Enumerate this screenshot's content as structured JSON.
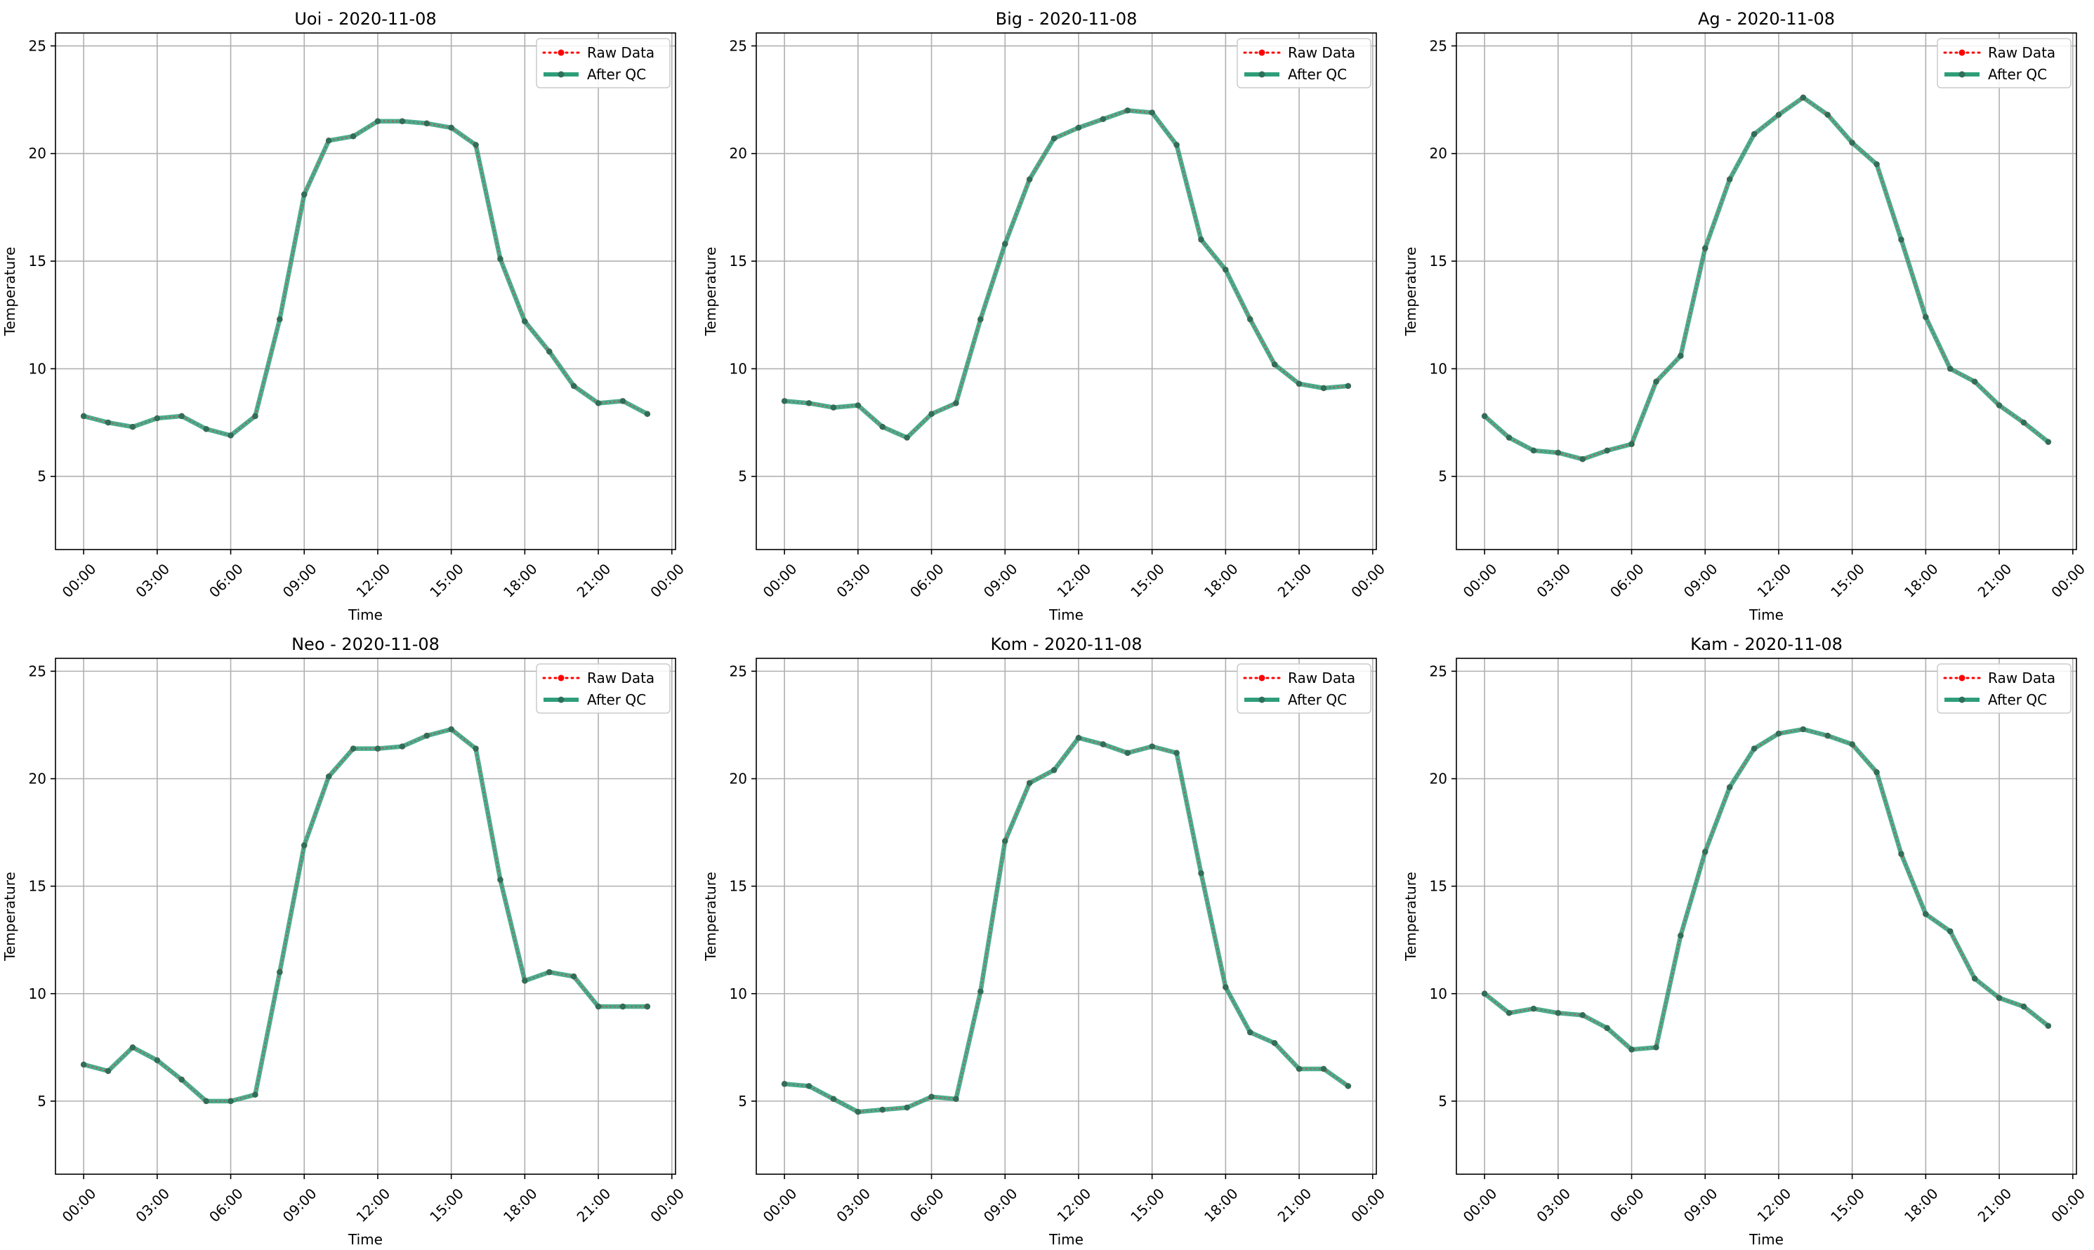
{
  "figure": {
    "legend": {
      "raw_label": "Raw Data",
      "qc_label": "After QC"
    },
    "colors": {
      "raw": "#ff0000",
      "qc": "#2e9e7a",
      "qc_point": "#2f6f5a",
      "grid": "#b0b0b0",
      "axes": "#000000"
    }
  },
  "chart_data": [
    {
      "type": "line",
      "title": "Uoi - 2020-11-08",
      "xlabel": "Time",
      "ylabel": "Temperature",
      "xlim": [
        -1.15,
        24.15
      ],
      "ylim": [
        1.6,
        25.6
      ],
      "x_ticks": [
        0,
        3,
        6,
        9,
        12,
        15,
        18,
        21,
        24
      ],
      "x_tick_labels": [
        "00:00",
        "03:00",
        "06:00",
        "09:00",
        "12:00",
        "15:00",
        "18:00",
        "21:00",
        "00:00"
      ],
      "y_ticks": [
        5,
        10,
        15,
        20,
        25
      ],
      "y_tick_labels": [
        "5",
        "10",
        "15",
        "20",
        "25"
      ],
      "grid": true,
      "legend_position": "top-right",
      "x": [
        0,
        1,
        2,
        3,
        4,
        5,
        6,
        7,
        8,
        9,
        10,
        11,
        12,
        13,
        14,
        15,
        16,
        17,
        18,
        19,
        20,
        21,
        22,
        23
      ],
      "series": [
        {
          "name": "Raw Data",
          "values": [
            7.8,
            7.5,
            7.3,
            7.7,
            7.8,
            7.2,
            6.9,
            7.8,
            12.3,
            18.1,
            20.6,
            20.8,
            21.5,
            21.5,
            21.4,
            21.2,
            20.4,
            15.1,
            12.2,
            10.8,
            9.2,
            8.4,
            8.5,
            7.9
          ]
        },
        {
          "name": "After QC",
          "values": [
            7.8,
            7.5,
            7.3,
            7.7,
            7.8,
            7.2,
            6.9,
            7.8,
            12.3,
            18.1,
            20.6,
            20.8,
            21.5,
            21.5,
            21.4,
            21.2,
            20.4,
            15.1,
            12.2,
            10.8,
            9.2,
            8.4,
            8.5,
            7.9
          ]
        }
      ]
    },
    {
      "type": "line",
      "title": "Big - 2020-11-08",
      "xlabel": "Time",
      "ylabel": "Temperature",
      "xlim": [
        -1.15,
        24.15
      ],
      "ylim": [
        1.6,
        25.6
      ],
      "x_ticks": [
        0,
        3,
        6,
        9,
        12,
        15,
        18,
        21,
        24
      ],
      "x_tick_labels": [
        "00:00",
        "03:00",
        "06:00",
        "09:00",
        "12:00",
        "15:00",
        "18:00",
        "21:00",
        "00:00"
      ],
      "y_ticks": [
        5,
        10,
        15,
        20,
        25
      ],
      "y_tick_labels": [
        "5",
        "10",
        "15",
        "20",
        "25"
      ],
      "grid": true,
      "legend_position": "top-right",
      "x": [
        0,
        1,
        2,
        3,
        4,
        5,
        6,
        7,
        8,
        9,
        10,
        11,
        12,
        13,
        14,
        15,
        16,
        17,
        18,
        19,
        20,
        21,
        22,
        23
      ],
      "series": [
        {
          "name": "Raw Data",
          "values": [
            8.5,
            8.4,
            8.2,
            8.3,
            7.3,
            6.8,
            7.9,
            8.4,
            12.3,
            15.8,
            18.8,
            20.7,
            21.2,
            21.6,
            22.0,
            21.9,
            20.4,
            16.0,
            14.6,
            12.3,
            10.2,
            9.3,
            9.1,
            9.2
          ]
        },
        {
          "name": "After QC",
          "values": [
            8.5,
            8.4,
            8.2,
            8.3,
            7.3,
            6.8,
            7.9,
            8.4,
            12.3,
            15.8,
            18.8,
            20.7,
            21.2,
            21.6,
            22.0,
            21.9,
            20.4,
            16.0,
            14.6,
            12.3,
            10.2,
            9.3,
            9.1,
            9.2
          ]
        }
      ]
    },
    {
      "type": "line",
      "title": "Ag - 2020-11-08",
      "xlabel": "Time",
      "ylabel": "Temperature",
      "xlim": [
        -1.15,
        24.15
      ],
      "ylim": [
        1.6,
        25.6
      ],
      "x_ticks": [
        0,
        3,
        6,
        9,
        12,
        15,
        18,
        21,
        24
      ],
      "x_tick_labels": [
        "00:00",
        "03:00",
        "06:00",
        "09:00",
        "12:00",
        "15:00",
        "18:00",
        "21:00",
        "00:00"
      ],
      "y_ticks": [
        5,
        10,
        15,
        20,
        25
      ],
      "y_tick_labels": [
        "5",
        "10",
        "15",
        "20",
        "25"
      ],
      "grid": true,
      "legend_position": "top-right",
      "x": [
        0,
        1,
        2,
        3,
        4,
        5,
        6,
        7,
        8,
        9,
        10,
        11,
        12,
        13,
        14,
        15,
        16,
        17,
        18,
        19,
        20,
        21,
        22,
        23
      ],
      "series": [
        {
          "name": "Raw Data",
          "values": [
            7.8,
            6.8,
            6.2,
            6.1,
            5.8,
            6.2,
            6.5,
            9.4,
            10.6,
            15.6,
            18.8,
            20.9,
            21.8,
            22.6,
            21.8,
            20.5,
            19.5,
            16.0,
            12.4,
            10.0,
            9.4,
            8.3,
            7.5,
            6.6
          ]
        },
        {
          "name": "After QC",
          "values": [
            7.8,
            6.8,
            6.2,
            6.1,
            5.8,
            6.2,
            6.5,
            9.4,
            10.6,
            15.6,
            18.8,
            20.9,
            21.8,
            22.6,
            21.8,
            20.5,
            19.5,
            16.0,
            12.4,
            10.0,
            9.4,
            8.3,
            7.5,
            6.6
          ]
        }
      ]
    },
    {
      "type": "line",
      "title": "Neo - 2020-11-08",
      "xlabel": "Time",
      "ylabel": "Temperature",
      "xlim": [
        -1.15,
        24.15
      ],
      "ylim": [
        1.6,
        25.6
      ],
      "x_ticks": [
        0,
        3,
        6,
        9,
        12,
        15,
        18,
        21,
        24
      ],
      "x_tick_labels": [
        "00:00",
        "03:00",
        "06:00",
        "09:00",
        "12:00",
        "15:00",
        "18:00",
        "21:00",
        "00:00"
      ],
      "y_ticks": [
        5,
        10,
        15,
        20,
        25
      ],
      "y_tick_labels": [
        "5",
        "10",
        "15",
        "20",
        "25"
      ],
      "grid": true,
      "legend_position": "top-right",
      "x": [
        0,
        1,
        2,
        3,
        4,
        5,
        6,
        7,
        8,
        9,
        10,
        11,
        12,
        13,
        14,
        15,
        16,
        17,
        18,
        19,
        20,
        21,
        22,
        23
      ],
      "series": [
        {
          "name": "Raw Data",
          "values": [
            6.7,
            6.4,
            7.5,
            6.9,
            6.0,
            5.0,
            5.0,
            5.3,
            11.0,
            16.9,
            20.1,
            21.4,
            21.4,
            21.5,
            22.0,
            22.3,
            21.4,
            15.3,
            10.6,
            11.0,
            10.8,
            9.4,
            9.4,
            9.4
          ]
        },
        {
          "name": "After QC",
          "values": [
            6.7,
            6.4,
            7.5,
            6.9,
            6.0,
            5.0,
            5.0,
            5.3,
            11.0,
            16.9,
            20.1,
            21.4,
            21.4,
            21.5,
            22.0,
            22.3,
            21.4,
            15.3,
            10.6,
            11.0,
            10.8,
            9.4,
            9.4,
            9.4
          ]
        }
      ]
    },
    {
      "type": "line",
      "title": "Kom - 2020-11-08",
      "xlabel": "Time",
      "ylabel": "Temperature",
      "xlim": [
        -1.15,
        24.15
      ],
      "ylim": [
        1.6,
        25.6
      ],
      "x_ticks": [
        0,
        3,
        6,
        9,
        12,
        15,
        18,
        21,
        24
      ],
      "x_tick_labels": [
        "00:00",
        "03:00",
        "06:00",
        "09:00",
        "12:00",
        "15:00",
        "18:00",
        "21:00",
        "00:00"
      ],
      "y_ticks": [
        5,
        10,
        15,
        20,
        25
      ],
      "y_tick_labels": [
        "5",
        "10",
        "15",
        "20",
        "25"
      ],
      "grid": true,
      "legend_position": "top-right",
      "x": [
        0,
        1,
        2,
        3,
        4,
        5,
        6,
        7,
        8,
        9,
        10,
        11,
        12,
        13,
        14,
        15,
        16,
        17,
        18,
        19,
        20,
        21,
        22,
        23
      ],
      "series": [
        {
          "name": "Raw Data",
          "values": [
            5.8,
            5.7,
            5.1,
            4.5,
            4.6,
            4.7,
            5.2,
            5.1,
            10.1,
            17.1,
            19.8,
            20.4,
            21.9,
            21.6,
            21.2,
            21.5,
            21.2,
            15.6,
            10.3,
            8.2,
            7.7,
            6.5,
            6.5,
            5.7
          ]
        },
        {
          "name": "After QC",
          "values": [
            5.8,
            5.7,
            5.1,
            4.5,
            4.6,
            4.7,
            5.2,
            5.1,
            10.1,
            17.1,
            19.8,
            20.4,
            21.9,
            21.6,
            21.2,
            21.5,
            21.2,
            15.6,
            10.3,
            8.2,
            7.7,
            6.5,
            6.5,
            5.7
          ]
        }
      ]
    },
    {
      "type": "line",
      "title": "Kam - 2020-11-08",
      "xlabel": "Time",
      "ylabel": "Temperature",
      "xlim": [
        -1.15,
        24.15
      ],
      "ylim": [
        1.6,
        25.6
      ],
      "x_ticks": [
        0,
        3,
        6,
        9,
        12,
        15,
        18,
        21,
        24
      ],
      "x_tick_labels": [
        "00:00",
        "03:00",
        "06:00",
        "09:00",
        "12:00",
        "15:00",
        "18:00",
        "21:00",
        "00:00"
      ],
      "y_ticks": [
        5,
        10,
        15,
        20,
        25
      ],
      "y_tick_labels": [
        "5",
        "10",
        "15",
        "20",
        "25"
      ],
      "grid": true,
      "legend_position": "top-right",
      "x": [
        0,
        1,
        2,
        3,
        4,
        5,
        6,
        7,
        8,
        9,
        10,
        11,
        12,
        13,
        14,
        15,
        16,
        17,
        18,
        19,
        20,
        21,
        22,
        23
      ],
      "series": [
        {
          "name": "Raw Data",
          "values": [
            10.0,
            9.1,
            9.3,
            9.1,
            9.0,
            8.4,
            7.4,
            7.5,
            12.7,
            16.6,
            19.6,
            21.4,
            22.1,
            22.3,
            22.0,
            21.6,
            20.3,
            16.5,
            13.7,
            12.9,
            10.7,
            9.8,
            9.4,
            8.5
          ]
        },
        {
          "name": "After QC",
          "values": [
            10.0,
            9.1,
            9.3,
            9.1,
            9.0,
            8.4,
            7.4,
            7.5,
            12.7,
            16.6,
            19.6,
            21.4,
            22.1,
            22.3,
            22.0,
            21.6,
            20.3,
            16.5,
            13.7,
            12.9,
            10.7,
            9.8,
            9.4,
            8.5
          ]
        }
      ]
    }
  ]
}
